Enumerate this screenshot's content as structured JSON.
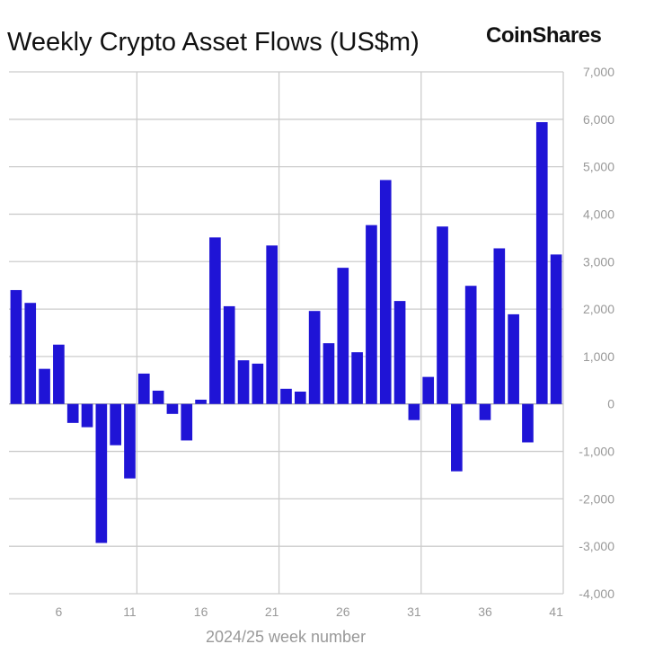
{
  "chart_data": {
    "type": "bar",
    "title": "Weekly Crypto Asset Flows (US$m)",
    "brand": "CoinShares",
    "xlabel": "2024/25 week number",
    "ylabel": "",
    "ylim": [
      -4000,
      7000
    ],
    "yticks": [
      7000,
      6000,
      5000,
      4000,
      3000,
      2000,
      1000,
      0,
      -1000,
      -2000,
      -3000,
      -4000
    ],
    "ytick_labels": [
      "7,000",
      "6,000",
      "5,000",
      "4,000",
      "3,000",
      "2,000",
      "1,000",
      "0",
      "-1,000",
      "-2,000",
      "-3,000",
      "-4,000"
    ],
    "xticks": [
      6,
      11,
      16,
      21,
      26,
      31,
      36,
      41
    ],
    "xtick_labels": [
      "6",
      "11",
      "16",
      "21",
      "26",
      "31",
      "36",
      "41"
    ],
    "y_axis_position": "right",
    "grid": true,
    "bar_color": "#1f14d6",
    "categories": [
      3,
      4,
      5,
      6,
      7,
      8,
      9,
      10,
      11,
      12,
      13,
      14,
      15,
      16,
      17,
      18,
      19,
      20,
      21,
      22,
      23,
      24,
      25,
      26,
      27,
      28,
      29,
      30,
      31,
      32,
      33,
      34,
      35,
      36,
      37,
      38,
      39,
      40,
      41
    ],
    "values": [
      2400,
      2130,
      740,
      1250,
      -400,
      -490,
      -2930,
      -870,
      -1570,
      640,
      280,
      -210,
      -770,
      90,
      3510,
      2060,
      920,
      850,
      3340,
      320,
      260,
      1960,
      1280,
      2870,
      1090,
      3770,
      4720,
      2170,
      -340,
      570,
      3740,
      -1420,
      2490,
      -340,
      3280,
      1890,
      -810,
      5940,
      3150
    ]
  }
}
